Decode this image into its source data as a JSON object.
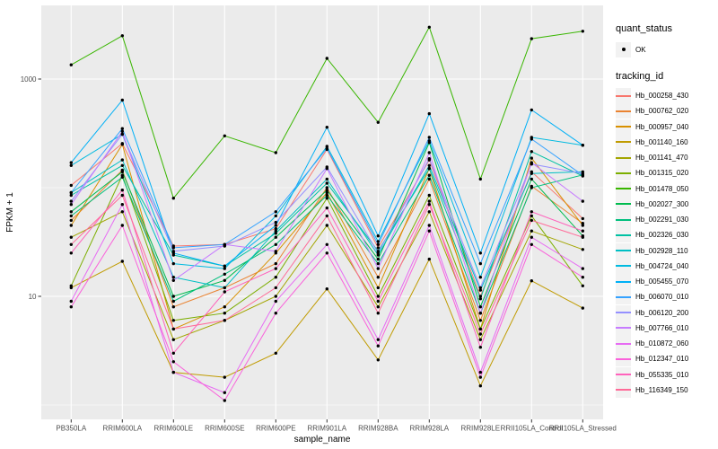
{
  "colors": {
    "panel_background": "#EBEBEB",
    "gridline": "#FFFFFF",
    "legend_key_background": "#F2F2F2",
    "tick_label": "#4D4D4D",
    "axis_title": "#000000",
    "point": "#000000"
  },
  "chart_data": {
    "type": "line",
    "title": "",
    "xlabel": "sample_name",
    "ylabel": "FPKM + 1",
    "y_scale": "log10",
    "ylim": [
      0.75,
      4800
    ],
    "y_axis_breaks": [
      10,
      1000
    ],
    "y_axis_tick_labels": [
      "10",
      "1000"
    ],
    "y_minor_gridlines": [
      1,
      100
    ],
    "grid": "on",
    "legend_position": "right",
    "categories": [
      "PB350LA",
      "RRIM600LA",
      "RRIM600LE",
      "RRIM600SE",
      "RRIM600PE",
      "RRIM901LA",
      "RRIM928BA",
      "RRIM928LA",
      "RRIM928LE",
      "RRII105LA_Control",
      "RRII105LA_Stressed"
    ],
    "legend": {
      "quant_status_title": "quant_status",
      "quant_status_entries": [
        "OK"
      ],
      "tracking_id_title": "tracking_id"
    },
    "series": [
      {
        "name": "Hb_000258_430",
        "color": "#F8766D",
        "values": [
          105,
          255,
          29,
          30,
          42,
          225,
          28,
          180,
          10,
          140,
          52
        ]
      },
      {
        "name": "Hb_000762_020",
        "color": "#EA8331",
        "values": [
          50,
          145,
          8,
          12,
          20,
          100,
          15,
          120,
          6,
          103,
          47
        ]
      },
      {
        "name": "Hb_000957_040",
        "color": "#D89000",
        "values": [
          45,
          250,
          5,
          8,
          25,
          90,
          12,
          150,
          5,
          187,
          45
        ]
      },
      {
        "name": "Hb_001140_160",
        "color": "#C09B00",
        "values": [
          12,
          21,
          2,
          1.8,
          3,
          11.7,
          2.6,
          22,
          1.5,
          13.9,
          7.8
        ]
      },
      {
        "name": "Hb_001141_470",
        "color": "#A3A500",
        "values": [
          35,
          60,
          4,
          6,
          10,
          45,
          8,
          60,
          4,
          40,
          27
        ]
      },
      {
        "name": "Hb_001315_020",
        "color": "#7CAE00",
        "values": [
          12.5,
          130,
          6,
          7,
          15,
          80,
          10,
          85,
          5,
          55,
          12.5
        ]
      },
      {
        "name": "Hb_001478_050",
        "color": "#39B600",
        "values": [
          1350,
          2500,
          80,
          300,
          210,
          1550,
          400,
          3000,
          120,
          2350,
          2750
        ]
      },
      {
        "name": "Hb_002027_300",
        "color": "#00BB4E",
        "values": [
          60,
          140,
          10,
          14,
          35,
          95,
          22,
          260,
          8,
          120,
          36
        ]
      },
      {
        "name": "Hb_002291_030",
        "color": "#00BF7D",
        "values": [
          55,
          125,
          9,
          16,
          30,
          85,
          20,
          130,
          7,
          100,
          131
        ]
      },
      {
        "name": "Hb_002326_030",
        "color": "#00C1A3",
        "values": [
          85,
          160,
          24,
          19,
          38,
          110,
          26,
          150,
          9.5,
          215,
          128
        ]
      },
      {
        "name": "Hb_002928_110",
        "color": "#00BFC4",
        "values": [
          90,
          180,
          15,
          12,
          40,
          120,
          24,
          160,
          11.4,
          135,
          140
        ]
      },
      {
        "name": "Hb_004724_040",
        "color": "#00BAE0",
        "values": [
          160,
          310,
          20,
          18,
          55,
          240,
          32,
          270,
          15,
          290,
          246
        ]
      },
      {
        "name": "Hb_005455_070",
        "color": "#00B0F6",
        "values": [
          170,
          640,
          25,
          19,
          45,
          360,
          36,
          480,
          25,
          520,
          246
        ]
      },
      {
        "name": "Hb_006070_010",
        "color": "#35A2FF",
        "values": [
          90,
          350,
          28,
          30,
          60,
          230,
          30,
          290,
          20,
          280,
          130
        ]
      },
      {
        "name": "Hb_006120_200",
        "color": "#9590FF",
        "values": [
          75,
          310,
          26,
          29,
          48,
          155,
          25,
          185,
          12,
          165,
          135
        ]
      },
      {
        "name": "Hb_007766_010",
        "color": "#C77CFF",
        "values": [
          70,
          330,
          14,
          30,
          26,
          150,
          18,
          210,
          7,
          170,
          75
        ]
      },
      {
        "name": "Hb_010872_060",
        "color": "#E76BF3",
        "values": [
          9,
          70,
          2,
          1.3,
          9,
          30,
          4,
          45,
          2,
          35,
          18
        ]
      },
      {
        "name": "Hb_012347_010",
        "color": "#FA62DB",
        "values": [
          8,
          45,
          2.5,
          1.1,
          7,
          25,
          3.5,
          40,
          1.8,
          30,
          15
        ]
      },
      {
        "name": "Hb_055335_010",
        "color": "#FF62BC",
        "values": [
          25,
          95,
          3,
          11,
          18,
          65,
          9,
          75,
          3.4,
          60,
          40
        ]
      },
      {
        "name": "Hb_116349_150",
        "color": "#FF6A98",
        "values": [
          30,
          85,
          5,
          6,
          12,
          55,
          7,
          70,
          4.5,
          50,
          35
        ]
      }
    ]
  }
}
